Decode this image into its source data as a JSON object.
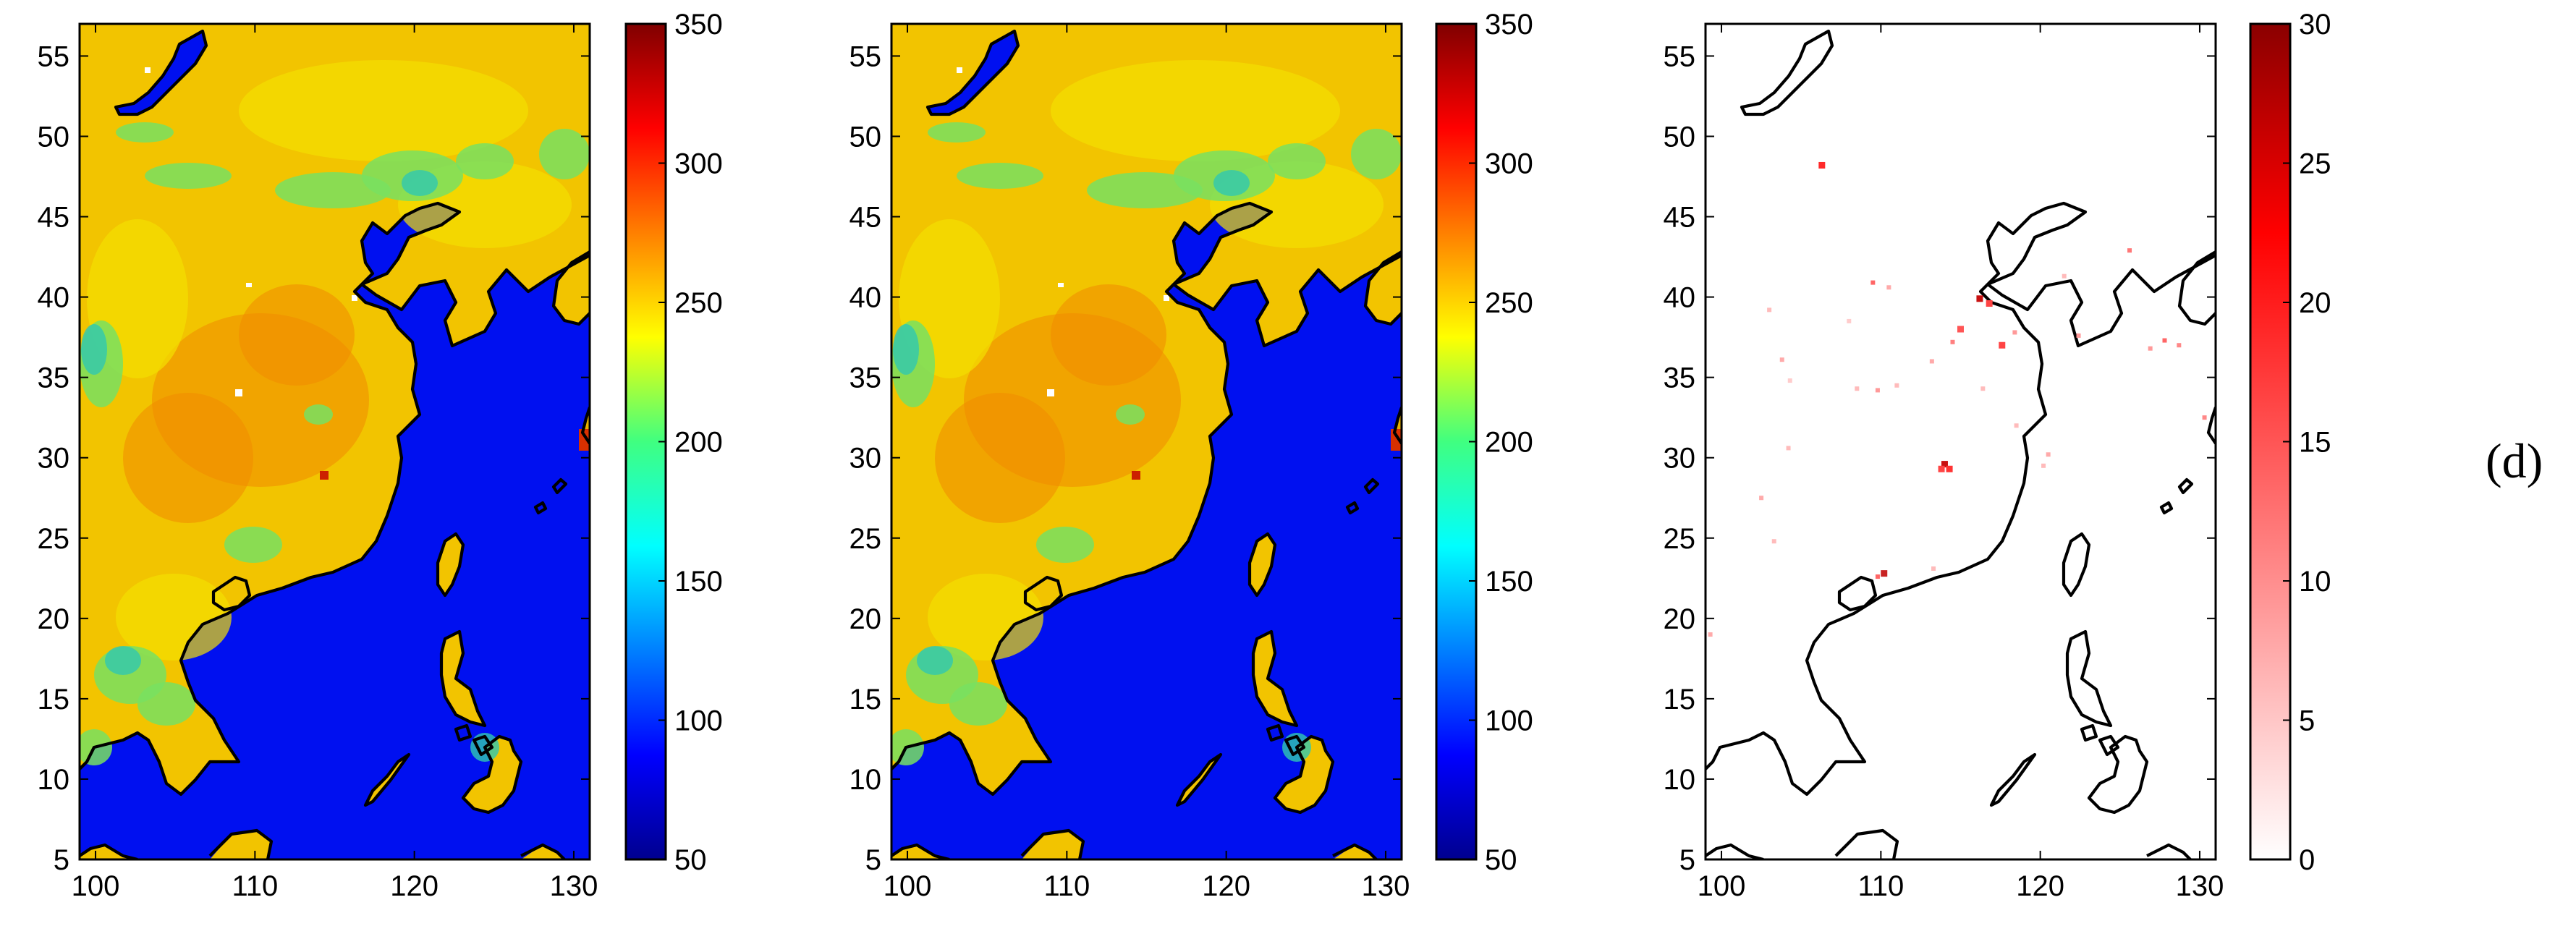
{
  "figure_label": "(d)",
  "colors": {
    "ocean_blue": "#0010f0",
    "coast": "#000000",
    "cell_red": "#e00000"
  },
  "chart_data": [
    {
      "type": "heatmap",
      "title": "",
      "xlabel": "",
      "ylabel": "",
      "xlim": [
        99,
        131
      ],
      "ylim": [
        5,
        57
      ],
      "xticks": [
        100,
        110,
        120,
        130
      ],
      "yticks": [
        5,
        10,
        15,
        20,
        25,
        30,
        35,
        40,
        45,
        50,
        55
      ],
      "colorbar": {
        "range": [
          50,
          350
        ],
        "ticks": [
          50,
          100,
          150,
          200,
          250,
          300,
          350
        ],
        "colormap": "jet"
      },
      "description_values": {
        "land_typical": 255,
        "land_lowland_green": 200,
        "ocean": 90
      }
    },
    {
      "type": "heatmap",
      "title": "",
      "xlabel": "",
      "ylabel": "",
      "xlim": [
        99,
        131
      ],
      "ylim": [
        5,
        57
      ],
      "xticks": [
        100,
        110,
        120,
        130
      ],
      "yticks": [
        5,
        10,
        15,
        20,
        25,
        30,
        35,
        40,
        45,
        50,
        55
      ],
      "colorbar": {
        "range": [
          50,
          350
        ],
        "ticks": [
          50,
          100,
          150,
          200,
          250,
          300,
          350
        ],
        "colormap": "jet"
      },
      "description_values": {
        "land_typical": 255,
        "land_lowland_green": 200,
        "ocean": 90
      }
    },
    {
      "type": "heatmap",
      "title": "",
      "xlabel": "",
      "ylabel": "",
      "xlim": [
        99,
        131
      ],
      "ylim": [
        5,
        57
      ],
      "xticks": [
        100,
        110,
        120,
        130
      ],
      "yticks": [
        5,
        10,
        15,
        20,
        25,
        30,
        35,
        40,
        45,
        50,
        55
      ],
      "colorbar": {
        "range": [
          0,
          30
        ],
        "ticks": [
          0,
          5,
          10,
          15,
          20,
          25,
          30
        ],
        "colormap": "white-to-red"
      },
      "points": [
        {
          "lon": 106.3,
          "lat": 48.2,
          "v": 25
        },
        {
          "lon": 109.5,
          "lat": 40.9,
          "v": 18
        },
        {
          "lon": 110.5,
          "lat": 40.6,
          "v": 10
        },
        {
          "lon": 116.2,
          "lat": 39.9,
          "v": 28
        },
        {
          "lon": 116.8,
          "lat": 39.6,
          "v": 22
        },
        {
          "lon": 115.0,
          "lat": 38.0,
          "v": 20
        },
        {
          "lon": 114.5,
          "lat": 37.2,
          "v": 15
        },
        {
          "lon": 117.6,
          "lat": 37.0,
          "v": 22
        },
        {
          "lon": 118.4,
          "lat": 37.8,
          "v": 12
        },
        {
          "lon": 113.2,
          "lat": 36.0,
          "v": 10
        },
        {
          "lon": 111.0,
          "lat": 34.5,
          "v": 8
        },
        {
          "lon": 109.8,
          "lat": 34.2,
          "v": 12
        },
        {
          "lon": 108.5,
          "lat": 34.3,
          "v": 8
        },
        {
          "lon": 103.8,
          "lat": 36.1,
          "v": 10
        },
        {
          "lon": 103.0,
          "lat": 39.2,
          "v": 8
        },
        {
          "lon": 104.3,
          "lat": 34.8,
          "v": 6
        },
        {
          "lon": 108.0,
          "lat": 38.5,
          "v": 6
        },
        {
          "lon": 116.4,
          "lat": 34.3,
          "v": 8
        },
        {
          "lon": 118.5,
          "lat": 32.0,
          "v": 8
        },
        {
          "lon": 120.5,
          "lat": 30.2,
          "v": 10
        },
        {
          "lon": 120.2,
          "lat": 29.5,
          "v": 8
        },
        {
          "lon": 114.0,
          "lat": 29.6,
          "v": 28
        },
        {
          "lon": 114.3,
          "lat": 29.3,
          "v": 24
        },
        {
          "lon": 113.8,
          "lat": 29.3,
          "v": 22
        },
        {
          "lon": 104.2,
          "lat": 30.6,
          "v": 8
        },
        {
          "lon": 102.5,
          "lat": 27.5,
          "v": 10
        },
        {
          "lon": 103.3,
          "lat": 24.8,
          "v": 8
        },
        {
          "lon": 110.2,
          "lat": 22.8,
          "v": 26
        },
        {
          "lon": 109.8,
          "lat": 22.6,
          "v": 18
        },
        {
          "lon": 113.3,
          "lat": 23.1,
          "v": 8
        },
        {
          "lon": 121.5,
          "lat": 41.3,
          "v": 8
        },
        {
          "lon": 122.4,
          "lat": 37.6,
          "v": 12
        },
        {
          "lon": 125.6,
          "lat": 42.9,
          "v": 16
        },
        {
          "lon": 127.8,
          "lat": 37.3,
          "v": 18
        },
        {
          "lon": 128.7,
          "lat": 37.0,
          "v": 14
        },
        {
          "lon": 126.9,
          "lat": 36.8,
          "v": 12
        },
        {
          "lon": 130.3,
          "lat": 32.5,
          "v": 14
        },
        {
          "lon": 99.3,
          "lat": 19.0,
          "v": 10
        }
      ]
    }
  ]
}
